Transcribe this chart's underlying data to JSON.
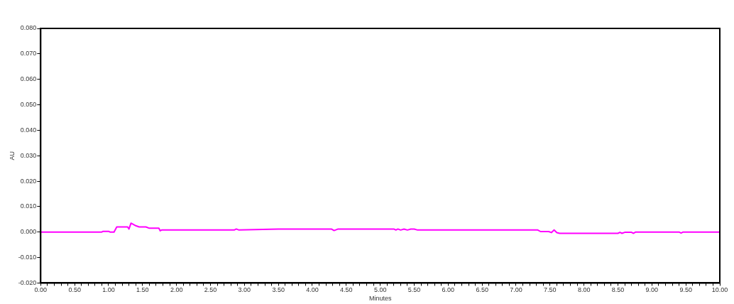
{
  "chart_data": {
    "type": "line",
    "xlabel": "Minutes",
    "ylabel": "AU",
    "grid": false,
    "legend": false,
    "marker": "none",
    "line_style": "solid",
    "xlim": [
      0,
      10
    ],
    "ylim": [
      -0.02,
      0.08
    ],
    "xticks": [
      {
        "value": 0,
        "label": "0.00"
      },
      {
        "value": 0.1,
        "label": null
      },
      {
        "value": 0.2,
        "label": null
      },
      {
        "value": 0.3,
        "label": null
      },
      {
        "value": 0.4,
        "label": null
      },
      {
        "value": 0.5,
        "label": "0.50"
      },
      {
        "value": 0.6,
        "label": null
      },
      {
        "value": 0.7,
        "label": null
      },
      {
        "value": 0.8,
        "label": null
      },
      {
        "value": 0.9,
        "label": null
      },
      {
        "value": 1,
        "label": "1.00"
      },
      {
        "value": 1.1,
        "label": null
      },
      {
        "value": 1.2,
        "label": null
      },
      {
        "value": 1.3,
        "label": null
      },
      {
        "value": 1.4,
        "label": null
      },
      {
        "value": 1.5,
        "label": "1.50"
      },
      {
        "value": 1.6,
        "label": null
      },
      {
        "value": 1.7,
        "label": null
      },
      {
        "value": 1.8,
        "label": null
      },
      {
        "value": 1.9,
        "label": null
      },
      {
        "value": 2,
        "label": "2.00"
      },
      {
        "value": 2.1,
        "label": null
      },
      {
        "value": 2.2,
        "label": null
      },
      {
        "value": 2.3,
        "label": null
      },
      {
        "value": 2.4,
        "label": null
      },
      {
        "value": 2.5,
        "label": "2.50"
      },
      {
        "value": 2.6,
        "label": null
      },
      {
        "value": 2.7,
        "label": null
      },
      {
        "value": 2.8,
        "label": null
      },
      {
        "value": 2.9,
        "label": null
      },
      {
        "value": 3,
        "label": "3.00"
      },
      {
        "value": 3.1,
        "label": null
      },
      {
        "value": 3.2,
        "label": null
      },
      {
        "value": 3.3,
        "label": null
      },
      {
        "value": 3.4,
        "label": null
      },
      {
        "value": 3.5,
        "label": "3.50"
      },
      {
        "value": 3.6,
        "label": null
      },
      {
        "value": 3.7,
        "label": null
      },
      {
        "value": 3.8,
        "label": null
      },
      {
        "value": 3.9,
        "label": null
      },
      {
        "value": 4,
        "label": "4.00"
      },
      {
        "value": 4.1,
        "label": null
      },
      {
        "value": 4.2,
        "label": null
      },
      {
        "value": 4.3,
        "label": null
      },
      {
        "value": 4.4,
        "label": null
      },
      {
        "value": 4.5,
        "label": "4.50"
      },
      {
        "value": 4.6,
        "label": null
      },
      {
        "value": 4.7,
        "label": null
      },
      {
        "value": 4.8,
        "label": null
      },
      {
        "value": 4.9,
        "label": null
      },
      {
        "value": 5,
        "label": "5.00"
      },
      {
        "value": 5.1,
        "label": null
      },
      {
        "value": 5.2,
        "label": null
      },
      {
        "value": 5.3,
        "label": null
      },
      {
        "value": 5.4,
        "label": null
      },
      {
        "value": 5.5,
        "label": "5.50"
      },
      {
        "value": 5.6,
        "label": null
      },
      {
        "value": 5.7,
        "label": null
      },
      {
        "value": 5.8,
        "label": null
      },
      {
        "value": 5.9,
        "label": null
      },
      {
        "value": 6,
        "label": "6.00"
      },
      {
        "value": 6.1,
        "label": null
      },
      {
        "value": 6.2,
        "label": null
      },
      {
        "value": 6.3,
        "label": null
      },
      {
        "value": 6.4,
        "label": null
      },
      {
        "value": 6.5,
        "label": "6.50"
      },
      {
        "value": 6.6,
        "label": null
      },
      {
        "value": 6.7,
        "label": null
      },
      {
        "value": 6.8,
        "label": null
      },
      {
        "value": 6.9,
        "label": null
      },
      {
        "value": 7,
        "label": "7.00"
      },
      {
        "value": 7.1,
        "label": null
      },
      {
        "value": 7.2,
        "label": null
      },
      {
        "value": 7.3,
        "label": null
      },
      {
        "value": 7.4,
        "label": null
      },
      {
        "value": 7.5,
        "label": "7.50"
      },
      {
        "value": 7.6,
        "label": null
      },
      {
        "value": 7.7,
        "label": null
      },
      {
        "value": 7.8,
        "label": null
      },
      {
        "value": 7.9,
        "label": null
      },
      {
        "value": 8,
        "label": "8.00"
      },
      {
        "value": 8.1,
        "label": null
      },
      {
        "value": 8.2,
        "label": null
      },
      {
        "value": 8.3,
        "label": null
      },
      {
        "value": 8.4,
        "label": null
      },
      {
        "value": 8.5,
        "label": "8.50"
      },
      {
        "value": 8.6,
        "label": null
      },
      {
        "value": 8.7,
        "label": null
      },
      {
        "value": 8.8,
        "label": null
      },
      {
        "value": 8.9,
        "label": null
      },
      {
        "value": 9,
        "label": "9.00"
      },
      {
        "value": 9.1,
        "label": null
      },
      {
        "value": 9.2,
        "label": null
      },
      {
        "value": 9.3,
        "label": null
      },
      {
        "value": 9.4,
        "label": null
      },
      {
        "value": 9.5,
        "label": "9.50"
      },
      {
        "value": 9.6,
        "label": null
      },
      {
        "value": 9.7,
        "label": null
      },
      {
        "value": 9.8,
        "label": null
      },
      {
        "value": 9.9,
        "label": null
      },
      {
        "value": 10,
        "label": "10.00"
      }
    ],
    "yticks": [
      {
        "value": -0.02,
        "label": "-0.020"
      },
      {
        "value": -0.01,
        "label": "-0.010"
      },
      {
        "value": 0,
        "label": "0.000"
      },
      {
        "value": 0.01,
        "label": "0.010"
      },
      {
        "value": 0.02,
        "label": "0.020"
      },
      {
        "value": 0.03,
        "label": "0.030"
      },
      {
        "value": 0.04,
        "label": "0.040"
      },
      {
        "value": 0.05,
        "label": "0.050"
      },
      {
        "value": 0.06,
        "label": "0.060"
      },
      {
        "value": 0.07,
        "label": "0.070"
      },
      {
        "value": 0.08,
        "label": "0.080"
      }
    ],
    "series": [
      {
        "color": "#ff00ff",
        "x": [
          0,
          0.9,
          0.92,
          1.0,
          1.02,
          1.08,
          1.12,
          1.28,
          1.3,
          1.33,
          1.4,
          1.45,
          1.55,
          1.6,
          1.74,
          1.76,
          1.78,
          2.0,
          2.85,
          2.88,
          2.92,
          3.5,
          4.28,
          4.32,
          4.38,
          4.5,
          5.2,
          5.23,
          5.26,
          5.3,
          5.35,
          5.4,
          5.45,
          5.5,
          5.55,
          5.62,
          6.0,
          7.32,
          7.36,
          7.48,
          7.52,
          7.56,
          7.6,
          7.64,
          8.0,
          8.5,
          8.53,
          8.56,
          8.6,
          8.7,
          8.73,
          8.76,
          9.0,
          9.4,
          9.43,
          9.46,
          10
        ],
        "values": [
          0,
          0,
          0.0003,
          0.0003,
          0,
          0,
          0.002,
          0.002,
          0.0012,
          0.0035,
          0.0025,
          0.002,
          0.002,
          0.0015,
          0.0015,
          0.0005,
          0.0008,
          0.0008,
          0.0008,
          0.0012,
          0.0008,
          0.0012,
          0.0012,
          0.0006,
          0.0012,
          0.0012,
          0.0012,
          0.0008,
          0.0012,
          0.0008,
          0.0012,
          0.0008,
          0.0012,
          0.0012,
          0.0008,
          0.0008,
          0.0008,
          0.0008,
          0.0002,
          0.0002,
          -0.0002,
          0.0008,
          -0.0002,
          -0.0005,
          -0.0005,
          -0.0005,
          -0.0001,
          -0.0005,
          -0.0001,
          -0.0001,
          -0.0005,
          0,
          0,
          0,
          -0.0004,
          0,
          0
        ]
      }
    ]
  }
}
